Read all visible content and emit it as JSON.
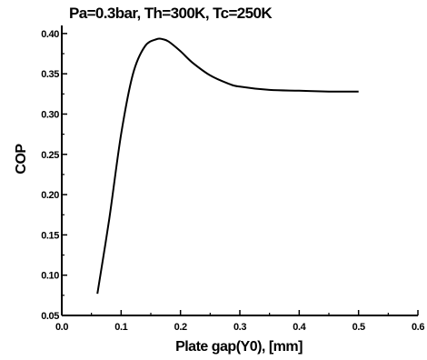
{
  "chart_data": {
    "type": "line",
    "title": "Pa=0.3bar, Th=300K, Tc=250K",
    "xlabel": "Plate gap(Y0), [mm]",
    "ylabel": "COP",
    "xlim": [
      0.0,
      0.6
    ],
    "ylim": [
      0.05,
      0.41
    ],
    "xticks": [
      "0.0",
      "0.1",
      "0.2",
      "0.3",
      "0.4",
      "0.5",
      "0.6"
    ],
    "yticks": [
      "0.05",
      "0.10",
      "0.15",
      "0.20",
      "0.25",
      "0.30",
      "0.35",
      "0.40"
    ],
    "grid": false,
    "series": [
      {
        "x": [
          0.06,
          0.08,
          0.1,
          0.12,
          0.14,
          0.16,
          0.17,
          0.18,
          0.2,
          0.22,
          0.25,
          0.28,
          0.3,
          0.35,
          0.4,
          0.45,
          0.5
        ],
        "y": [
          0.077,
          0.17,
          0.275,
          0.35,
          0.384,
          0.393,
          0.393,
          0.39,
          0.378,
          0.364,
          0.348,
          0.338,
          0.334,
          0.33,
          0.329,
          0.328,
          0.328
        ]
      }
    ]
  }
}
